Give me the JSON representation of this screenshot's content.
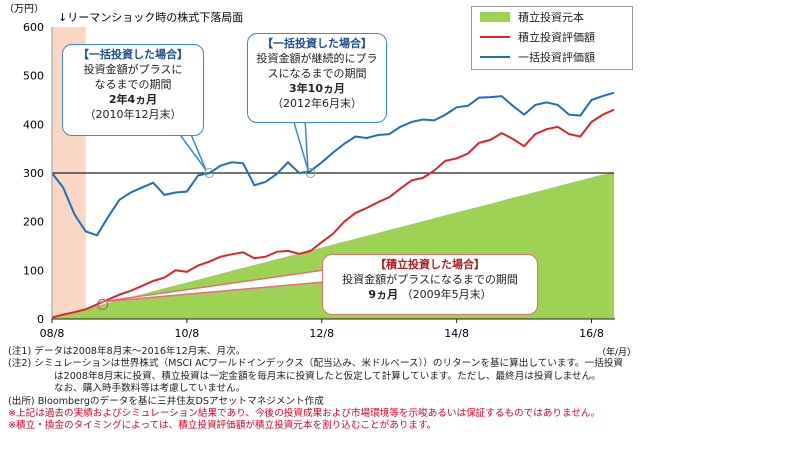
{
  "chart_data": {
    "type": "area",
    "title": "↓リーマンショック時の株式下落局面",
    "yunit": "（万円）",
    "xunit": "（年/月）",
    "ylim": [
      0,
      600
    ],
    "yticks": [
      "0",
      "100",
      "200",
      "300",
      "400",
      "500",
      "600"
    ],
    "xticks": [
      "08/8",
      "10/8",
      "12/8",
      "14/8",
      "16/8"
    ],
    "x": [
      "2008-08",
      "2008-10",
      "2008-12",
      "2009-02",
      "2009-04",
      "2009-06",
      "2009-08",
      "2009-10",
      "2009-12",
      "2010-02",
      "2010-04",
      "2010-06",
      "2010-08",
      "2010-10",
      "2010-12",
      "2011-02",
      "2011-04",
      "2011-06",
      "2011-08",
      "2011-10",
      "2011-12",
      "2012-02",
      "2012-04",
      "2012-06",
      "2012-08",
      "2012-10",
      "2012-12",
      "2013-02",
      "2013-04",
      "2013-06",
      "2013-08",
      "2013-10",
      "2013-12",
      "2014-02",
      "2014-04",
      "2014-06",
      "2014-08",
      "2014-10",
      "2014-12",
      "2015-02",
      "2015-04",
      "2015-06",
      "2015-08",
      "2015-10",
      "2015-12",
      "2016-02",
      "2016-04",
      "2016-06",
      "2016-08",
      "2016-10",
      "2016-12"
    ],
    "series": [
      {
        "name": "積立投資元本",
        "color": "#9ed255",
        "values": [
          3,
          9,
          15,
          21,
          27,
          33,
          39,
          45,
          51,
          57,
          63,
          69,
          75,
          81,
          87,
          93,
          99,
          105,
          111,
          117,
          123,
          129,
          135,
          141,
          147,
          153,
          159,
          165,
          171,
          177,
          183,
          189,
          195,
          201,
          207,
          213,
          219,
          225,
          231,
          237,
          243,
          249,
          255,
          261,
          267,
          273,
          279,
          285,
          291,
          297,
          300
        ]
      },
      {
        "name": "積立投資評価額",
        "color": "#e0242b",
        "values": [
          3,
          9,
          14,
          20,
          30,
          40,
          50,
          58,
          68,
          78,
          85,
          100,
          97,
          110,
          118,
          128,
          133,
          137,
          125,
          128,
          138,
          140,
          134,
          140,
          158,
          175,
          200,
          218,
          228,
          240,
          250,
          268,
          285,
          290,
          305,
          325,
          330,
          340,
          362,
          368,
          382,
          370,
          355,
          380,
          390,
          395,
          380,
          375,
          405,
          420,
          430
        ]
      },
      {
        "name": "一括投資評価額",
        "color": "#1e6fb9",
        "values": [
          300,
          270,
          215,
          180,
          172,
          210,
          245,
          260,
          270,
          280,
          255,
          260,
          262,
          295,
          300,
          315,
          322,
          320,
          275,
          282,
          298,
          322,
          300,
          304,
          322,
          342,
          360,
          375,
          372,
          378,
          380,
          395,
          405,
          410,
          408,
          420,
          435,
          438,
          455,
          456,
          458,
          438,
          420,
          440,
          445,
          440,
          420,
          418,
          450,
          458,
          465
        ]
      }
    ],
    "reference_line": 300,
    "shaded_period": [
      "2008-08",
      "2009-02"
    ]
  },
  "legend": {
    "items": [
      {
        "label": "積立投資元本",
        "color": "#9ed255",
        "kind": "area"
      },
      {
        "label": "積立投資評価額",
        "color": "#e0242b",
        "kind": "line"
      },
      {
        "label": "一括投資評価額",
        "color": "#1e6fb9",
        "kind": "line"
      }
    ]
  },
  "callouts": {
    "lump1": {
      "head": "【一括投資した場合】",
      "l1": "投資金額がプラスに",
      "l2": "なるまでの期間",
      "bold": "2年4ヵ月",
      "date": "（2010年12月末）"
    },
    "lump2": {
      "head": "【一括投資した場合】",
      "l1": "投資金額が継続的にプラ",
      "l2": "スになるまでの期間",
      "bold": "3年10ヵ月",
      "date": "（2012年6月末）"
    },
    "accum": {
      "head": "【積立投資した場合】",
      "l1": "投資金額がプラスになるまでの期間",
      "bold": "9ヵ月",
      "date": "（2009年5月末）"
    }
  },
  "notes": {
    "n1": "(注1)  データは2008年8月末～2016年12月末、月次。",
    "n2a": "(注2)  シミュレーションは世界株式（MSCI ACワールドインデックス（配当込み、米ドルベース））のリターンを基に算出しています。一括投資",
    "n2b": "は2008年8月末に投資、積立投資は一定金額を毎月末に投資したと仮定して計算しています。ただし、最終月は投資しません。",
    "n2c": "なお、購入時手数料等は考慮していません。",
    "n3": "(出所)  Bloombergのデータを基に三井住友DSアセットマネジメント作成",
    "w1": "※上記は過去の実績およびシミュレーション結果であり、今後の投資成果および市場環境等を示唆あるいは保証するものではありません。",
    "w2": "※積立・換金のタイミングによっては、積立投資評価額が積立投資元本を割り込むことがあります。"
  }
}
